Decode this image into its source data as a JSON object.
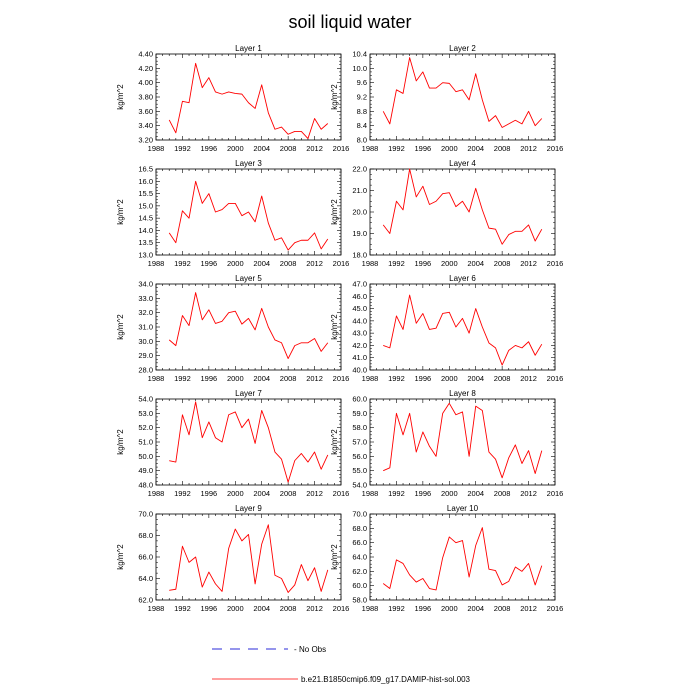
{
  "page_title": "soil liquid water",
  "colors": {
    "series": "#ff0000",
    "no_obs": "#2b2bd9",
    "axis": "#000000"
  },
  "legend": [
    {
      "label": "No Obs",
      "style": "dashed",
      "color": "#2b2bd9"
    },
    {
      "label": "b.e21.B1850cmip6.f09_g17.DAMIP-hist-sol.003",
      "style": "solid",
      "color": "#ff0000"
    }
  ],
  "chart_data": [
    {
      "type": "line",
      "title": "Layer 1",
      "ylabel": "kg/m^2",
      "xlim": [
        1988,
        2016
      ],
      "ylim": [
        3.2,
        4.4
      ],
      "xticks": [
        "1988",
        "1992",
        "1996",
        "2000",
        "2004",
        "2008",
        "2012",
        "2016"
      ],
      "yticks": [
        "3.20",
        "3.40",
        "3.60",
        "3.80",
        "4.00",
        "4.20",
        "4.40"
      ],
      "x": [
        1990,
        1991,
        1992,
        1993,
        1994,
        1995,
        1996,
        1997,
        1998,
        1999,
        2000,
        2001,
        2002,
        2003,
        2004,
        2005,
        2006,
        2007,
        2008,
        2009,
        2010,
        2011,
        2012,
        2013,
        2014
      ],
      "series": [
        {
          "name": "b.e21.B1850cmip6.f09_g17.DAMIP-hist-sol.003",
          "values": [
            3.48,
            3.3,
            3.74,
            3.72,
            4.27,
            3.93,
            4.07,
            3.87,
            3.84,
            3.87,
            3.85,
            3.84,
            3.72,
            3.64,
            3.97,
            3.58,
            3.35,
            3.38,
            3.28,
            3.32,
            3.32,
            3.22,
            3.5,
            3.35,
            3.43
          ]
        }
      ]
    },
    {
      "type": "line",
      "title": "Layer 2",
      "ylabel": "kg/m^2",
      "xlim": [
        1988,
        2016
      ],
      "ylim": [
        8.0,
        10.4
      ],
      "xticks": [
        "1988",
        "1992",
        "1996",
        "2000",
        "2004",
        "2008",
        "2012",
        "2016"
      ],
      "yticks": [
        "8.0",
        "8.4",
        "8.8",
        "9.2",
        "9.6",
        "10.0",
        "10.4"
      ],
      "x": [
        1990,
        1991,
        1992,
        1993,
        1994,
        1995,
        1996,
        1997,
        1998,
        1999,
        2000,
        2001,
        2002,
        2003,
        2004,
        2005,
        2006,
        2007,
        2008,
        2009,
        2010,
        2011,
        2012,
        2013,
        2014
      ],
      "series": [
        {
          "name": "b.e21.B1850cmip6.f09_g17.DAMIP-hist-sol.003",
          "values": [
            8.8,
            8.45,
            9.4,
            9.3,
            10.3,
            9.65,
            9.9,
            9.45,
            9.45,
            9.6,
            9.58,
            9.35,
            9.4,
            9.12,
            9.85,
            9.12,
            8.52,
            8.68,
            8.35,
            8.45,
            8.55,
            8.45,
            8.8,
            8.4,
            8.6
          ]
        }
      ]
    },
    {
      "type": "line",
      "title": "Layer 3",
      "ylabel": "kg/m^2",
      "xlim": [
        1988,
        2016
      ],
      "ylim": [
        13.0,
        16.5
      ],
      "xticks": [
        "1988",
        "1992",
        "1996",
        "2000",
        "2004",
        "2008",
        "2012",
        "2016"
      ],
      "yticks": [
        "13.0",
        "13.5",
        "14.0",
        "14.5",
        "15.0",
        "15.5",
        "16.0",
        "16.5"
      ],
      "x": [
        1990,
        1991,
        1992,
        1993,
        1994,
        1995,
        1996,
        1997,
        1998,
        1999,
        2000,
        2001,
        2002,
        2003,
        2004,
        2005,
        2006,
        2007,
        2008,
        2009,
        2010,
        2011,
        2012,
        2013,
        2014
      ],
      "series": [
        {
          "name": "b.e21.B1850cmip6.f09_g17.DAMIP-hist-sol.003",
          "values": [
            13.9,
            13.5,
            14.8,
            14.5,
            16.0,
            15.1,
            15.5,
            14.75,
            14.85,
            15.1,
            15.1,
            14.6,
            14.75,
            14.35,
            15.4,
            14.3,
            13.6,
            13.7,
            13.2,
            13.5,
            13.6,
            13.6,
            13.9,
            13.25,
            13.65
          ]
        }
      ]
    },
    {
      "type": "line",
      "title": "Layer 4",
      "ylabel": "kg/m^2",
      "xlim": [
        1988,
        2016
      ],
      "ylim": [
        18.0,
        22.0
      ],
      "xticks": [
        "1988",
        "1992",
        "1996",
        "2000",
        "2004",
        "2008",
        "2012",
        "2016"
      ],
      "yticks": [
        "18.0",
        "19.0",
        "20.0",
        "21.0",
        "22.0"
      ],
      "x": [
        1990,
        1991,
        1992,
        1993,
        1994,
        1995,
        1996,
        1997,
        1998,
        1999,
        2000,
        2001,
        2002,
        2003,
        2004,
        2005,
        2006,
        2007,
        2008,
        2009,
        2010,
        2011,
        2012,
        2013,
        2014
      ],
      "series": [
        {
          "name": "b.e21.B1850cmip6.f09_g17.DAMIP-hist-sol.003",
          "values": [
            19.4,
            19.0,
            20.5,
            20.1,
            22.0,
            20.7,
            21.2,
            20.35,
            20.5,
            20.85,
            20.9,
            20.25,
            20.5,
            20.0,
            21.1,
            20.1,
            19.25,
            19.2,
            18.5,
            18.95,
            19.1,
            19.1,
            19.4,
            18.65,
            19.2
          ]
        }
      ]
    },
    {
      "type": "line",
      "title": "Layer 5",
      "ylabel": "kg/m^2",
      "xlim": [
        1988,
        2016
      ],
      "ylim": [
        28.0,
        34.0
      ],
      "xticks": [
        "1988",
        "1992",
        "1996",
        "2000",
        "2004",
        "2008",
        "2012",
        "2016"
      ],
      "yticks": [
        "28.0",
        "29.0",
        "30.0",
        "31.0",
        "32.0",
        "33.0",
        "34.0"
      ],
      "x": [
        1990,
        1991,
        1992,
        1993,
        1994,
        1995,
        1996,
        1997,
        1998,
        1999,
        2000,
        2001,
        2002,
        2003,
        2004,
        2005,
        2006,
        2007,
        2008,
        2009,
        2010,
        2011,
        2012,
        2013,
        2014
      ],
      "series": [
        {
          "name": "b.e21.B1850cmip6.f09_g17.DAMIP-hist-sol.003",
          "values": [
            30.1,
            29.7,
            31.8,
            31.1,
            33.4,
            31.5,
            32.2,
            31.25,
            31.4,
            32.0,
            32.1,
            31.2,
            31.6,
            30.8,
            32.3,
            31.0,
            30.1,
            29.9,
            28.8,
            29.7,
            29.9,
            29.9,
            30.2,
            29.3,
            29.9
          ]
        }
      ]
    },
    {
      "type": "line",
      "title": "Layer 6",
      "ylabel": "kg/m^2",
      "xlim": [
        1988,
        2016
      ],
      "ylim": [
        40.0,
        47.0
      ],
      "xticks": [
        "1988",
        "1992",
        "1996",
        "2000",
        "2004",
        "2008",
        "2012",
        "2016"
      ],
      "yticks": [
        "40.0",
        "41.0",
        "42.0",
        "43.0",
        "44.0",
        "45.0",
        "46.0",
        "47.0"
      ],
      "x": [
        1990,
        1991,
        1992,
        1993,
        1994,
        1995,
        1996,
        1997,
        1998,
        1999,
        2000,
        2001,
        2002,
        2003,
        2004,
        2005,
        2006,
        2007,
        2008,
        2009,
        2010,
        2011,
        2012,
        2013,
        2014
      ],
      "series": [
        {
          "name": "b.e21.B1850cmip6.f09_g17.DAMIP-hist-sol.003",
          "values": [
            42.0,
            41.8,
            44.4,
            43.3,
            46.1,
            43.8,
            44.6,
            43.3,
            43.4,
            44.6,
            44.7,
            43.5,
            44.2,
            43.0,
            45.0,
            43.5,
            42.2,
            41.8,
            40.4,
            41.6,
            42.0,
            41.8,
            42.3,
            41.2,
            42.1
          ]
        }
      ]
    },
    {
      "type": "line",
      "title": "Layer 7",
      "ylabel": "kg/m^2",
      "xlim": [
        1988,
        2016
      ],
      "ylim": [
        48.0,
        54.0
      ],
      "xticks": [
        "1988",
        "1992",
        "1996",
        "2000",
        "2004",
        "2008",
        "2012",
        "2016"
      ],
      "yticks": [
        "48.0",
        "49.0",
        "50.0",
        "51.0",
        "52.0",
        "53.0",
        "54.0"
      ],
      "x": [
        1990,
        1991,
        1992,
        1993,
        1994,
        1995,
        1996,
        1997,
        1998,
        1999,
        2000,
        2001,
        2002,
        2003,
        2004,
        2005,
        2006,
        2007,
        2008,
        2009,
        2010,
        2011,
        2012,
        2013,
        2014
      ],
      "series": [
        {
          "name": "b.e21.B1850cmip6.f09_g17.DAMIP-hist-sol.003",
          "values": [
            49.7,
            49.6,
            52.9,
            51.5,
            53.8,
            51.3,
            52.4,
            51.3,
            51.0,
            52.9,
            53.1,
            52.0,
            52.6,
            50.9,
            53.2,
            52.0,
            50.3,
            49.8,
            48.2,
            49.7,
            50.2,
            49.6,
            50.3,
            49.1,
            50.1
          ]
        }
      ]
    },
    {
      "type": "line",
      "title": "Layer 8",
      "ylabel": "kg/m^2",
      "xlim": [
        1988,
        2016
      ],
      "ylim": [
        54.0,
        60.0
      ],
      "xticks": [
        "1988",
        "1992",
        "1996",
        "2000",
        "2004",
        "2008",
        "2012",
        "2016"
      ],
      "yticks": [
        "54.0",
        "55.0",
        "56.0",
        "57.0",
        "58.0",
        "59.0",
        "60.0"
      ],
      "x": [
        1990,
        1991,
        1992,
        1993,
        1994,
        1995,
        1996,
        1997,
        1998,
        1999,
        2000,
        2001,
        2002,
        2003,
        2004,
        2005,
        2006,
        2007,
        2008,
        2009,
        2010,
        2011,
        2012,
        2013,
        2014
      ],
      "series": [
        {
          "name": "b.e21.B1850cmip6.f09_g17.DAMIP-hist-sol.003",
          "values": [
            55.0,
            55.2,
            59.0,
            57.5,
            59.0,
            56.3,
            57.7,
            56.7,
            56.0,
            59.0,
            59.7,
            58.9,
            59.1,
            56.0,
            59.5,
            59.2,
            56.3,
            55.8,
            54.5,
            55.9,
            56.8,
            55.5,
            56.4,
            54.8,
            56.4
          ]
        }
      ]
    },
    {
      "type": "line",
      "title": "Layer 9",
      "ylabel": "kg/m^2",
      "xlim": [
        1988,
        2016
      ],
      "ylim": [
        62.0,
        70.0
      ],
      "xticks": [
        "1988",
        "1992",
        "1996",
        "2000",
        "2004",
        "2008",
        "2012",
        "2016"
      ],
      "yticks": [
        "62.0",
        "64.0",
        "66.0",
        "68.0",
        "70.0"
      ],
      "x": [
        1990,
        1991,
        1992,
        1993,
        1994,
        1995,
        1996,
        1997,
        1998,
        1999,
        2000,
        2001,
        2002,
        2003,
        2004,
        2005,
        2006,
        2007,
        2008,
        2009,
        2010,
        2011,
        2012,
        2013,
        2014
      ],
      "series": [
        {
          "name": "b.e21.B1850cmip6.f09_g17.DAMIP-hist-sol.003",
          "values": [
            62.9,
            63.0,
            67.0,
            65.5,
            66.0,
            63.2,
            64.6,
            63.5,
            62.8,
            66.8,
            68.6,
            67.5,
            68.1,
            63.5,
            67.2,
            69.0,
            64.3,
            64.0,
            62.7,
            63.4,
            65.3,
            63.8,
            65.0,
            62.8,
            64.8
          ]
        }
      ]
    },
    {
      "type": "line",
      "title": "Layer 10",
      "ylabel": "kg/m^2",
      "xlim": [
        1988,
        2016
      ],
      "ylim": [
        58.0,
        70.0
      ],
      "xticks": [
        "1988",
        "1992",
        "1996",
        "2000",
        "2004",
        "2008",
        "2012",
        "2016"
      ],
      "yticks": [
        "58.0",
        "60.0",
        "62.0",
        "64.0",
        "66.0",
        "68.0",
        "70.0"
      ],
      "x": [
        1990,
        1991,
        1992,
        1993,
        1994,
        1995,
        1996,
        1997,
        1998,
        1999,
        2000,
        2001,
        2002,
        2003,
        2004,
        2005,
        2006,
        2007,
        2008,
        2009,
        2010,
        2011,
        2012,
        2013,
        2014
      ],
      "series": [
        {
          "name": "b.e21.B1850cmip6.f09_g17.DAMIP-hist-sol.003",
          "values": [
            60.3,
            59.6,
            63.6,
            63.1,
            61.5,
            60.5,
            61.0,
            59.6,
            59.4,
            63.9,
            66.8,
            66.0,
            66.3,
            61.2,
            65.6,
            68.1,
            62.3,
            62.1,
            60.1,
            60.6,
            62.6,
            62.0,
            63.1,
            60.1,
            62.8
          ]
        }
      ]
    }
  ]
}
